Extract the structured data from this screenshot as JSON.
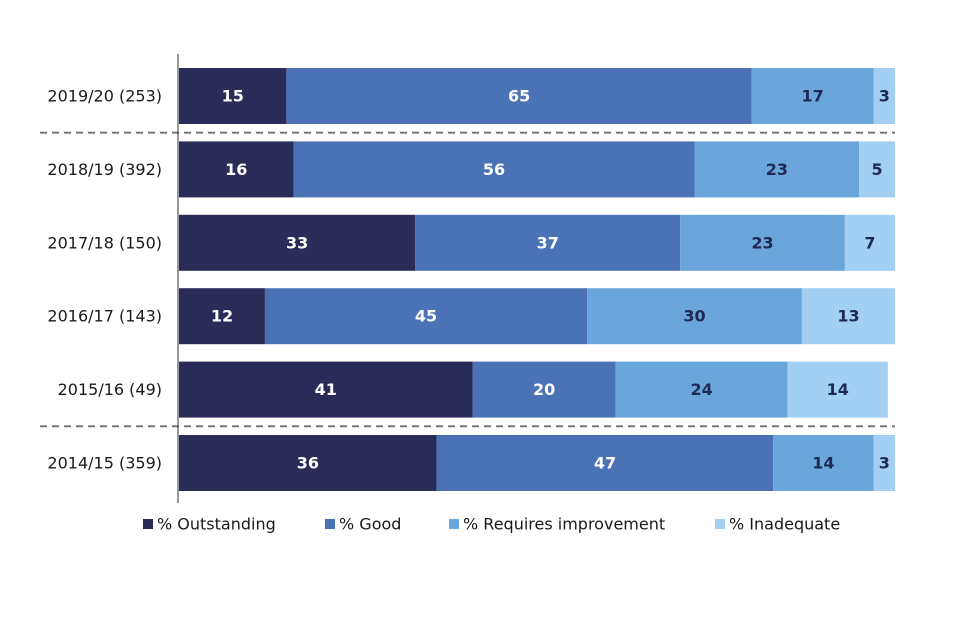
{
  "chart_data": {
    "type": "bar",
    "orientation": "horizontal",
    "stacked": true,
    "categories": [
      "2019/20 (253)",
      "2018/19 (392)",
      "2017/18 (150)",
      "2016/17 (143)",
      "2015/16 (49)",
      "2014/15 (359)"
    ],
    "series": [
      {
        "name": "% Outstanding",
        "color": "#2b2b57",
        "label_color": "#ffffff",
        "values": [
          15,
          16,
          33,
          12,
          41,
          36
        ]
      },
      {
        "name": "% Good",
        "color": "#4a72b5",
        "label_color": "#ffffff",
        "values": [
          65,
          56,
          37,
          45,
          20,
          47
        ]
      },
      {
        "name": "% Requires improvement",
        "color": "#6aa6db",
        "label_color": "#1e2a55",
        "values": [
          17,
          23,
          23,
          30,
          24,
          14
        ]
      },
      {
        "name": "% Inadequate",
        "color": "#a3cff2",
        "label_color": "#1e2a55",
        "values": [
          3,
          5,
          7,
          13,
          14,
          3
        ]
      }
    ],
    "xlim": [
      0,
      100
    ],
    "dashed_separators_after": [
      "2019/20 (253)",
      "2015/16 (49)"
    ],
    "legend_position": "bottom",
    "grid": false
  }
}
